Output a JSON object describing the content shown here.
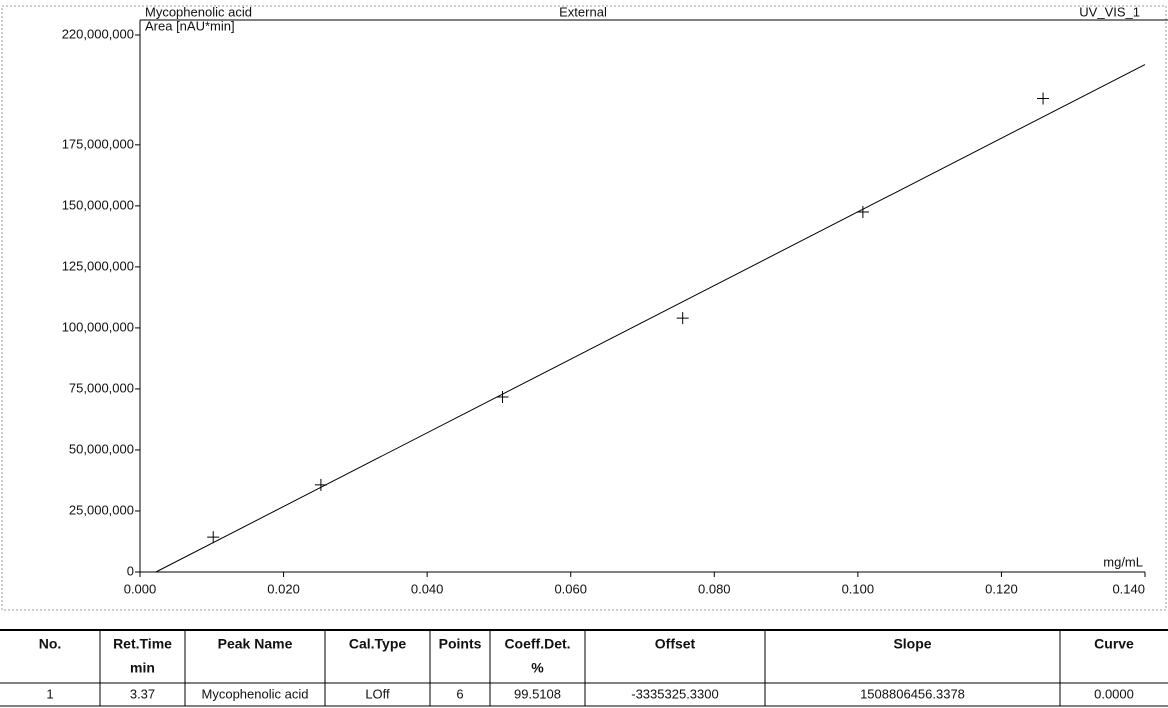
{
  "chart_data": {
    "type": "scatter",
    "title": "Mycophenolic acid",
    "y_label": "Area [nAU*min]",
    "subtitle": "External",
    "channel": "UV_VIS_1",
    "x_label": "mg/mL",
    "x": [
      0.0102,
      0.0252,
      0.0505,
      0.0756,
      0.1007,
      0.1258
    ],
    "values": [
      14300000,
      35700000,
      71700000,
      104000000,
      147500000,
      194000000
    ],
    "color": "#000000",
    "xlim": [
      0,
      0.14
    ],
    "xticks": [
      {
        "value": 0,
        "label": "0.000"
      },
      {
        "value": 0.02,
        "label": "0.020"
      },
      {
        "value": 0.04,
        "label": "0.040"
      },
      {
        "value": 0.06,
        "label": "0.060"
      },
      {
        "value": 0.08,
        "label": "0.080"
      },
      {
        "value": 0.1,
        "label": "0.100"
      },
      {
        "value": 0.12,
        "label": "0.120"
      },
      {
        "value": 0.14,
        "label": "0.140"
      }
    ],
    "ylim": [
      0,
      220000000
    ],
    "yticks": [
      0,
      {
        "value": 25000000,
        "label": "25,000,000"
      },
      {
        "value": 50000000,
        "label": "50,000,000"
      },
      {
        "value": 75000000,
        "label": "75,000,000"
      },
      {
        "value": 100000000,
        "label": "100,000,000"
      },
      {
        "value": 125000000,
        "label": "125,000,000"
      },
      {
        "value": 150000000,
        "label": "150,000,000"
      },
      {
        "value": 175000000,
        "label": "175,000,000"
      },
      {
        "value": 220000000,
        "label": "220,000,000"
      }
    ]
  },
  "table": {
    "header": [
      {
        "title": "No."
      },
      {
        "title": "Ret.Time",
        "unit": "min"
      },
      {
        "title": "Peak Name"
      },
      {
        "title": "Cal.Type"
      },
      {
        "title": "Points"
      },
      {
        "title": "Coeff.Det.",
        "unit": "%"
      },
      {
        "title": "Offset"
      },
      {
        "title": "Slope"
      },
      {
        "title": "Curve"
      }
    ],
    "rows": [
      [
        "1",
        "3.37",
        "Mycophenolic acid",
        "LOff",
        "6",
        "99.5108",
        "-3335325.3300",
        "1508806456.3378",
        "0.0000"
      ]
    ]
  }
}
